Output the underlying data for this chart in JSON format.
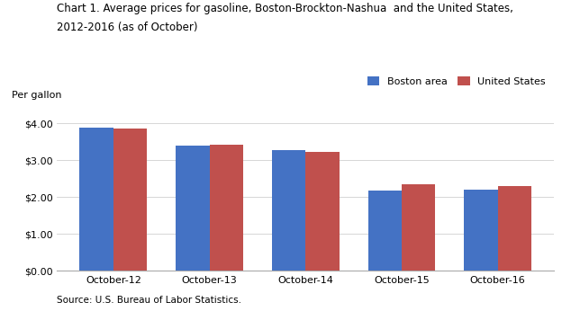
{
  "title_line1": "Chart 1. Average prices for gasoline, Boston-Brockton-Nashua  and the United States,",
  "title_line2": "2012-2016 (as of October)",
  "ylabel": "Per gallon",
  "source_note": "Source: U.S. Bureau of Labor Statistics.",
  "categories": [
    "October-12",
    "October-13",
    "October-14",
    "October-15",
    "October-16"
  ],
  "boston_values": [
    3.9,
    3.4,
    3.28,
    2.17,
    2.19
  ],
  "us_values": [
    3.87,
    3.42,
    3.22,
    2.35,
    2.3
  ],
  "boston_color": "#4472C4",
  "us_color": "#C0504D",
  "boston_label": "Boston area",
  "us_label": "United States",
  "ylim": [
    0.0,
    4.4
  ],
  "yticks": [
    0.0,
    1.0,
    2.0,
    3.0,
    4.0
  ],
  "bar_width": 0.35,
  "background_color": "#ffffff",
  "title_fontsize": 8.5,
  "axis_fontsize": 8,
  "legend_fontsize": 8,
  "source_fontsize": 7.5,
  "ylabel_fontsize": 8
}
